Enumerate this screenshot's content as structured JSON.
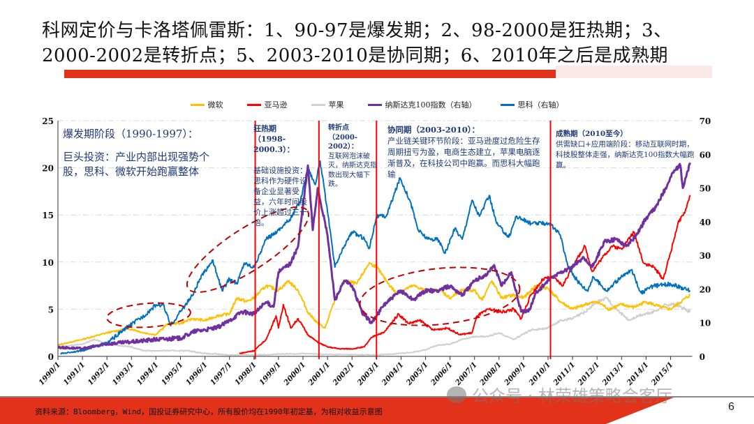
{
  "title": {
    "line1": "科网定价与卡洛塔佩雷斯：1、90-97是爆发期；2、98-2000是狂热期；3、",
    "line2": "2000-2002是转折点；5、2003-2010是协同期；6、2010年之后是成熟期"
  },
  "colors": {
    "accent": "#e2321a",
    "annotation": "#1f3a7a"
  },
  "chart_data": {
    "type": "line",
    "title": "",
    "xlabel": "",
    "ylabel_left": "",
    "ylabel_right": "",
    "x_tick_labels": [
      "1990/1",
      "1991/1",
      "1992/1",
      "1993/1",
      "1994/1",
      "1995/1",
      "1996/1",
      "1997/1",
      "1998/1",
      "1999/1",
      "2000/1",
      "2001/1",
      "2002/1",
      "2003/1",
      "2004/1",
      "2005/1",
      "2006/1",
      "2007/1",
      "2008/1",
      "2009/1",
      "2010/1",
      "2011/1",
      "2012/1",
      "2013/1",
      "2014/1",
      "2015/1"
    ],
    "xlim": [
      1990,
      2015.8
    ],
    "ylim_left": [
      0,
      25
    ],
    "ylim_right": [
      0,
      70
    ],
    "y_ticks_left": [
      0,
      5,
      10,
      15,
      20,
      25
    ],
    "y_ticks_right": [
      0,
      10,
      20,
      30,
      40,
      50,
      60,
      70
    ],
    "grid": "horizontal dashed",
    "legend_position": "top",
    "period_markers": [
      1998.05,
      2000.65,
      2003.0,
      2010.1
    ],
    "series": [
      {
        "name": "微软",
        "color": "#ffc000",
        "axis": "left",
        "x": [
          1990,
          1991,
          1992,
          1992.6,
          1993,
          1993.5,
          1994,
          1994.5,
          1995,
          1995.5,
          1996,
          1996.5,
          1997,
          1997.3,
          1997.7,
          1998,
          1998.5,
          1999,
          1999.4,
          1999.8,
          2000.2,
          2000.6,
          2000.9,
          2001.3,
          2001.7,
          2002.2,
          2002.7,
          2003,
          2003.4,
          2003.8,
          2004.5,
          2005,
          2005.6,
          2006,
          2006.5,
          2007,
          2007.3,
          2007.7,
          2008.1,
          2008.6,
          2009,
          2009.5,
          2010,
          2010.5,
          2011,
          2011.5,
          2012,
          2012.5,
          2013,
          2013.5,
          2014,
          2014.6,
          2015,
          2015.8
        ],
        "y": [
          1.2,
          1.8,
          2.5,
          2.8,
          2.9,
          2.5,
          2.3,
          3.5,
          3.5,
          4,
          3.8,
          4.3,
          4.5,
          6.2,
          5.8,
          6.2,
          7.5,
          7,
          8,
          7,
          4.7,
          3.5,
          3,
          6,
          8,
          7.7,
          9.9,
          9.5,
          8,
          6.7,
          7.5,
          7,
          7,
          6.2,
          7,
          7,
          6,
          8,
          6.2,
          6.5,
          6.2,
          7.5,
          7.2,
          5.8,
          5,
          5.5,
          5.8,
          5,
          5.5,
          5.2,
          5.8,
          5.2,
          5,
          6.5
        ]
      },
      {
        "name": "亚马逊",
        "color": "#ff0000",
        "axis": "left",
        "x": [
          1997.4,
          1998,
          1998.5,
          1998.9,
          1999,
          1999.2,
          1999.5,
          1999.8,
          2000.2,
          2000.6,
          2001,
          2001.5,
          2002,
          2002.5,
          2002.8,
          2003,
          2003.3,
          2003.9,
          2004.3,
          2004.8,
          2005.3,
          2005.9,
          2006.4,
          2006.9,
          2007.1,
          2007.6,
          2008.1,
          2008.6,
          2008.9,
          2009.3,
          2009.8,
          2010.2,
          2010.6,
          2011,
          2011.5,
          2011.8,
          2012.2,
          2012.6,
          2013,
          2013.5,
          2013.9,
          2014.3,
          2014.7,
          2015,
          2015.3,
          2015.6,
          2015.8
        ],
        "y": [
          0.3,
          0.6,
          1.8,
          4.3,
          3,
          5.5,
          3,
          4,
          2.3,
          1.5,
          1,
          0.8,
          0.8,
          1,
          2,
          2.3,
          2.5,
          4.5,
          3.5,
          3.8,
          2.8,
          3,
          2.3,
          2.5,
          4.3,
          5,
          4.7,
          5,
          4,
          6.5,
          8.2,
          8.4,
          7.5,
          9.5,
          11.7,
          9,
          10.4,
          11.7,
          11.4,
          13.2,
          9.9,
          9.5,
          8.2,
          11,
          14.1,
          15.4,
          17.1
        ]
      },
      {
        "name": "苹果",
        "color": "#d0d0d0",
        "axis": "left",
        "x": [
          1990,
          1991,
          1991.5,
          1992,
          1993,
          1993.5,
          1994.5,
          1995.3,
          1996,
          1997,
          1998,
          2000,
          2001,
          2003,
          2003.7,
          2004.5,
          2005,
          2005.5,
          2006,
          2006.5,
          2007,
          2007.5,
          2008,
          2008.6,
          2009.3,
          2010,
          2010.5,
          2011,
          2011.5,
          2012,
          2012.4,
          2012.8,
          2013.3,
          2013.7,
          2014.3,
          2014.8,
          2015.2,
          2015.8
        ],
        "y": [
          1,
          1.3,
          1.8,
          1.3,
          1,
          0.6,
          0.6,
          0.6,
          0.3,
          0.15,
          0.15,
          0.3,
          0.2,
          0.15,
          0.25,
          0.45,
          0.7,
          1.2,
          1.3,
          1.8,
          2.1,
          2.1,
          2.5,
          1.8,
          2.8,
          3,
          3.8,
          4,
          4.7,
          5.8,
          6.2,
          5,
          3.8,
          4.3,
          4.7,
          5.5,
          5.5,
          4.7
        ]
      },
      {
        "name": "纳斯达克100指数（右轴）",
        "color": "#7030a0",
        "axis": "right",
        "x": [
          1990,
          1991,
          1992,
          1993,
          1994,
          1995,
          1995.6,
          1996,
          1996.5,
          1997,
          1997.5,
          1998,
          1998.5,
          1998.8,
          1999,
          1999.5,
          1999.8,
          2000.2,
          2000.4,
          2000.6,
          2001,
          2001.3,
          2001.7,
          2002,
          2002.4,
          2002.8,
          2003,
          2003.3,
          2004,
          2004.5,
          2005,
          2005.5,
          2006,
          2006.5,
          2007,
          2007.5,
          2007.8,
          2008.1,
          2008.5,
          2008.9,
          2009.2,
          2009.5,
          2010,
          2010.5,
          2011,
          2011.4,
          2011.8,
          2012.3,
          2012.8,
          2013.2,
          2013.6,
          2014,
          2014.4,
          2014.8,
          2015.1,
          2015.4,
          2015.5,
          2015.8
        ],
        "y": [
          2.7,
          2.3,
          3.7,
          4.3,
          5,
          5.4,
          7.5,
          7.9,
          8.5,
          10.6,
          13.3,
          12.6,
          16.1,
          14.7,
          25,
          27.7,
          32.7,
          56.7,
          37.5,
          50,
          36,
          16.8,
          22.4,
          21,
          13.3,
          9.9,
          12,
          15.3,
          19.5,
          16.8,
          19.5,
          19.5,
          20.9,
          18.2,
          22.4,
          24.4,
          27.1,
          20.9,
          25,
          13.3,
          13.3,
          18.8,
          22.4,
          25,
          26.5,
          29.2,
          26.5,
          34,
          34.8,
          32.7,
          36,
          41,
          44.3,
          50,
          54.7,
          56.7,
          50,
          57.5
        ]
      },
      {
        "name": "思科（右轴）",
        "color": "#0070c0",
        "axis": "right",
        "x": [
          1990.1,
          1991,
          1992,
          1992.8,
          1993.5,
          1994,
          1994.3,
          1994.6,
          1995,
          1995.5,
          1995.8,
          1996.3,
          1996.7,
          1997,
          1997.3,
          1997.6,
          1998,
          1998.5,
          1999,
          1999.5,
          1999.9,
          2000.2,
          2000.5,
          2000.7,
          2001,
          2001.3,
          2001.7,
          2002,
          2002.5,
          2002.7,
          2003,
          2003.4,
          2003.96,
          2004.36,
          2004.7,
          2005.1,
          2005.5,
          2005.8,
          2006.2,
          2006.5,
          2006.9,
          2007.2,
          2007.6,
          2007.9,
          2008.4,
          2008.7,
          2009.3,
          2010.06,
          2010.5,
          2010.8,
          2011.2,
          2011.6,
          2011.85,
          2012.4,
          2012.9,
          2013.4,
          2013.8,
          2014.3,
          2015,
          2015.8
        ],
        "y": [
          0.8,
          1.7,
          3.9,
          8.5,
          12,
          15.3,
          15.3,
          9.1,
          13.3,
          18.2,
          23,
          28.6,
          19.5,
          23,
          21.5,
          27.7,
          26.5,
          34.8,
          37.5,
          41,
          46.4,
          56,
          51,
          58,
          43,
          26.5,
          33,
          37,
          35,
          32,
          41.6,
          41.6,
          53,
          46.4,
          37.5,
          34.8,
          34.8,
          30.6,
          38,
          34.8,
          46.4,
          41.6,
          47.8,
          39.5,
          35.4,
          41.6,
          39.5,
          39.5,
          36,
          27,
          22.4,
          19.5,
          23.6,
          19.5,
          23,
          25.7,
          18.8,
          20.9,
          21.5,
          19.5
        ]
      }
    ]
  },
  "annotations": {
    "p1_heading": "爆发期阶段（1990-1997）：",
    "p1_body": "巨头投资：产业内部出现强势个股，思科、微软开始跑赢整体",
    "p2_heading": "狂热期（1998-2000.3）：",
    "p2_body": "基础设施投资：思科作为硬件设备企业显著受益，六年时间股价上涨超过三十倍。",
    "p3_heading": "转折点（2000-2002）：",
    "p3_body": "互联网泡沫破灭，纳斯达克指数出现大幅下跌。",
    "p4_heading": "协同期（2003-2010）：",
    "p4_body": "产业链关键环节阶段：亚马逊度过危险生存周期扭亏为盈，电商生态建立，苹果电脑逐渐普及，在科技公司中跑赢。而思科大幅跑输",
    "p5_heading": "成熟期（2010至今）",
    "p5_body": "供需缺口+应用端阶段：移动互联网时期，科技股整体走强，纳斯达克100指数大幅跑赢。"
  },
  "footer": {
    "source": "资料来源：Bloomberg，Wind，国投证券研究中心，所有股价均在1990年初定基，为相对收益示意图",
    "page_number": "6",
    "watermark": "公众号 · 林荣雄策略会客厅"
  }
}
